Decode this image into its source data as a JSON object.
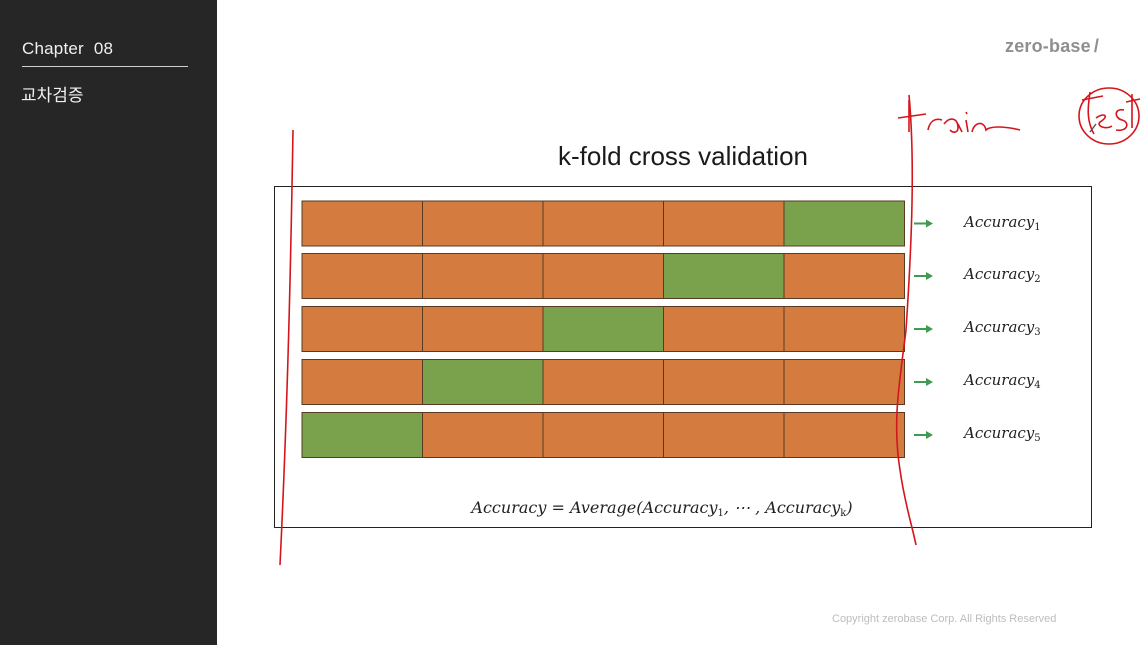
{
  "sidebar": {
    "chapter_label": "Chapter",
    "chapter_number": "08",
    "topic": "교차검증"
  },
  "slide": {
    "brand": "zero-base",
    "brand_slash": "/",
    "title": "k-fold cross validation",
    "copyright": "Copyright zerobase Corp. All Rights Reserved",
    "colors": {
      "train": "#d47c3f",
      "test": "#7aa24c",
      "arrow": "#3f9a52",
      "annotation": "#d4161c"
    },
    "rows": [
      {
        "test_fold": 5,
        "accuracy_label": "Accuracy",
        "subscript": "1"
      },
      {
        "test_fold": 4,
        "accuracy_label": "Accuracy",
        "subscript": "2"
      },
      {
        "test_fold": 3,
        "accuracy_label": "Accuracy",
        "subscript": "3"
      },
      {
        "test_fold": 2,
        "accuracy_label": "Accuracy",
        "subscript": "4"
      },
      {
        "test_fold": 1,
        "accuracy_label": "Accuracy",
        "subscript": "5"
      }
    ],
    "folds": 5,
    "formula": {
      "lhs": "Accuracy = Average(Accuracy",
      "sub1": "1",
      "mid": ", ⋯ , Accuracy",
      "subk": "k",
      "end": ")"
    }
  },
  "annotations": {
    "handwritten_train": "train",
    "handwritten_test": "test"
  }
}
